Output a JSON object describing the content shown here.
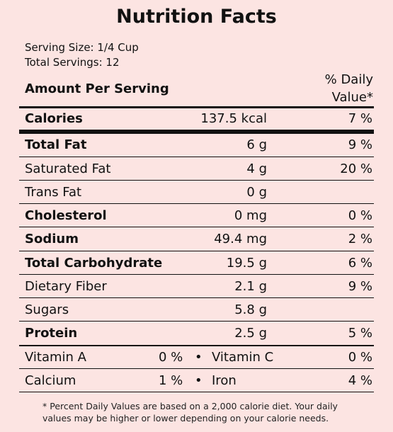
{
  "title": "Nutrition Facts",
  "serving_size": "Serving Size: 1/4 Cup",
  "total_servings": "Total Servings: 12",
  "amount_header": "Amount Per Serving",
  "dv_header_line1": "% Daily",
  "dv_header_line2": "Value*",
  "rows": [
    {
      "name": "Calories",
      "amount": "137.5 kcal",
      "dv": "7 %",
      "bold": true
    },
    {
      "name": "Total Fat",
      "amount": "6 g",
      "dv": "9 %",
      "bold": true
    },
    {
      "name": "Saturated Fat",
      "amount": "4 g",
      "dv": "20 %",
      "bold": false
    },
    {
      "name": "Trans Fat",
      "amount": "0 g",
      "dv": "",
      "bold": false
    },
    {
      "name": "Cholesterol",
      "amount": "0 mg",
      "dv": "0 %",
      "bold": true
    },
    {
      "name": "Sodium",
      "amount": "49.4 mg",
      "dv": "2 %",
      "bold": true
    },
    {
      "name": "Total Carbohydrate",
      "amount": "19.5 g",
      "dv": "6 %",
      "bold": true
    },
    {
      "name": "Dietary Fiber",
      "amount": "2.1 g",
      "dv": "9 %",
      "bold": false
    },
    {
      "name": "Sugars",
      "amount": "5.8 g",
      "dv": "",
      "bold": false
    },
    {
      "name": "Protein",
      "amount": "2.5 g",
      "dv": "5 %",
      "bold": true
    }
  ],
  "vitamins": [
    {
      "left_name": "Vitamin A",
      "left_pct": "0 %",
      "bullet": "•",
      "right_name": "Vitamin C",
      "right_pct": "0 %"
    },
    {
      "left_name": "Calcium",
      "left_pct": "1 %",
      "bullet": "•",
      "right_name": "Iron",
      "right_pct": "4 %"
    }
  ],
  "footnote": "* Percent Daily Values are based on a 2,000 calorie diet. Your daily values may be higher or lower depending on your calorie needs.",
  "colors": {
    "background": "#fce4e2",
    "text": "#111111"
  }
}
